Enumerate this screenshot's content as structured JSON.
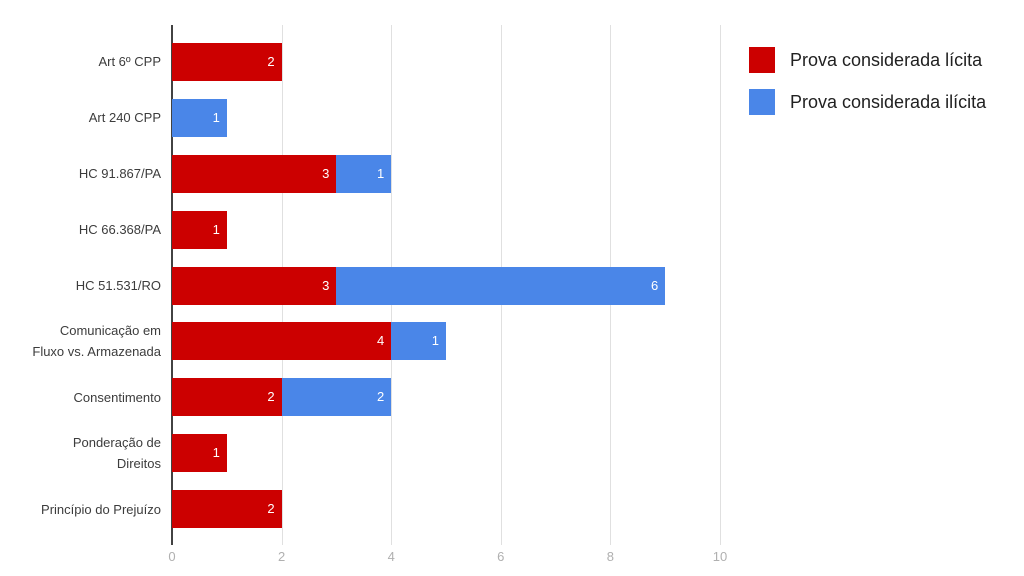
{
  "chart_data": {
    "type": "bar",
    "orientation": "horizontal",
    "stacked": true,
    "title": "",
    "categories": [
      "Art 6º CPP",
      "Art 240 CPP",
      "HC 91.867/PA",
      "HC 66.368/PA",
      "HC 51.531/RO",
      "Comunicação em\nFluxo vs. Armazenada",
      "Consentimento",
      "Ponderação de\nDireitos",
      "Princípio do Prejuízo"
    ],
    "series": [
      {
        "name": "Prova considerada lícita",
        "color": "#cc0000",
        "values": [
          2,
          0,
          3,
          1,
          3,
          4,
          2,
          1,
          2
        ]
      },
      {
        "name": "Prova considerada ilícita",
        "color": "#4a86e8",
        "values": [
          0,
          1,
          1,
          0,
          6,
          1,
          2,
          0,
          0
        ]
      }
    ],
    "xlim": [
      0,
      10
    ],
    "xticks": [
      0,
      2,
      4,
      6,
      8,
      10
    ],
    "grid": true,
    "value_labels": "inside-end",
    "legend_position": "top-right",
    "colors": {
      "background": "#ffffff",
      "gridline": "#e0e0e0",
      "axis_line": "#424242",
      "tick_label": "#b0b0b0",
      "category_label": "#3c3c3c",
      "value_label": "#ffffff",
      "legend_text": "#212121"
    }
  }
}
